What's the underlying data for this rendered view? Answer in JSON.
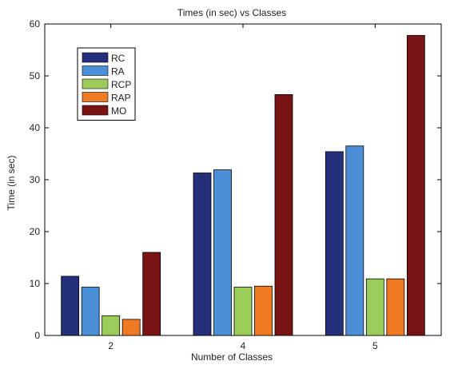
{
  "chart_data": {
    "type": "bar",
    "title": "Times (in sec) vs Classes",
    "xlabel": "Number of Classes",
    "ylabel": "Time (in sec)",
    "categories": [
      "2",
      "4",
      "5"
    ],
    "ylim": [
      0,
      60
    ],
    "yticks": [
      0,
      10,
      20,
      30,
      40,
      50,
      60
    ],
    "grid": false,
    "legend_position": "top-left",
    "series": [
      {
        "name": "RC",
        "color": "#24307a",
        "values": [
          11.4,
          31.3,
          35.4
        ]
      },
      {
        "name": "RA",
        "color": "#4a8fd8",
        "values": [
          9.3,
          31.9,
          36.5
        ]
      },
      {
        "name": "RCP",
        "color": "#9ccc5a",
        "values": [
          3.8,
          9.3,
          10.9
        ]
      },
      {
        "name": "RAP",
        "color": "#f07a24",
        "values": [
          3.1,
          9.5,
          10.9
        ]
      },
      {
        "name": "MO",
        "color": "#7a1414",
        "values": [
          16.0,
          46.4,
          57.8
        ]
      }
    ]
  }
}
